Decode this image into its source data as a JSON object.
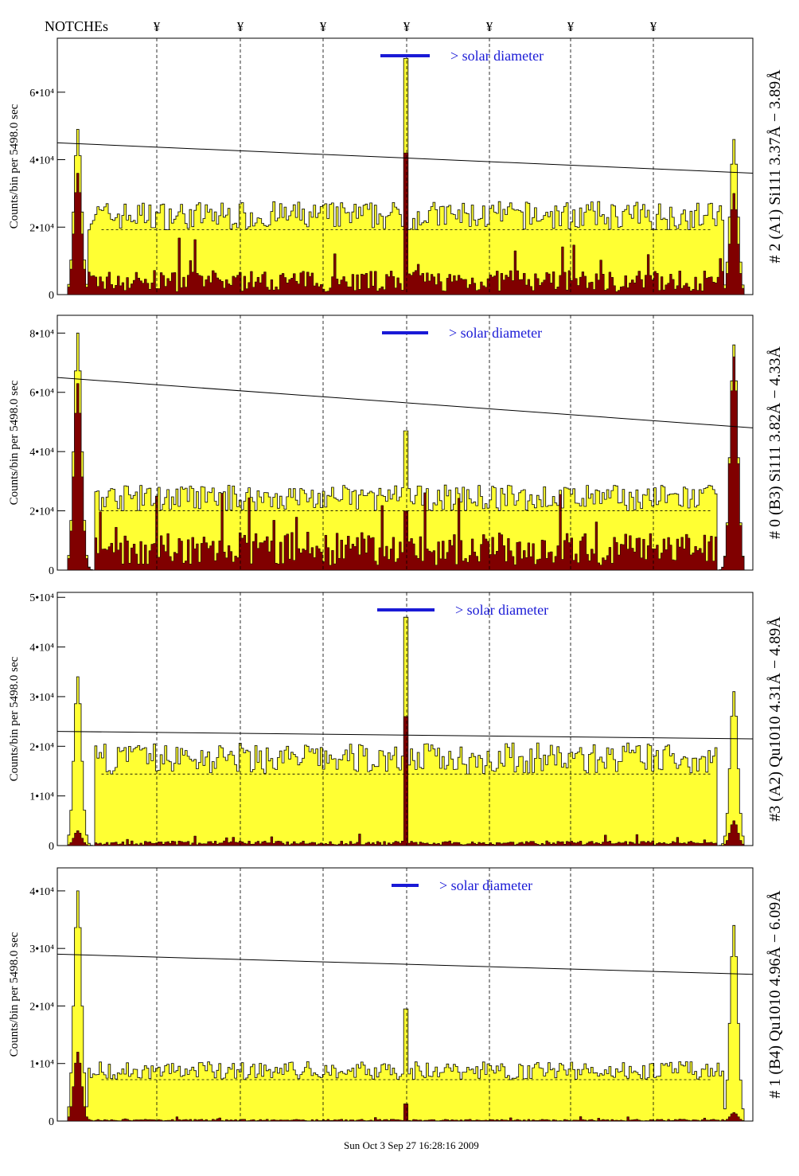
{
  "header": {
    "notches_label": "NOTCHEs",
    "notch_marker": "¥",
    "notch_count": 7
  },
  "footer": {
    "timestamp": "Sun Oct 3 Sep 27 16:28:16 2009"
  },
  "colors": {
    "panel_fill": "#ffff33",
    "overlay_fill": "#800000",
    "solar_bar": "#1a1ad6",
    "frame": "#000000"
  },
  "panels": [
    {
      "right_label": "# 2 (A1) Si111  3.37Å − 3.89Å",
      "ylabel": "Counts/bin per  5498.0 sec",
      "solar_text": "> solar diameter",
      "yticks": [
        "0",
        "2•10⁴",
        "4•10⁴",
        "6•10⁴"
      ]
    },
    {
      "right_label": "# 0 (B3) Si111  3.82Å − 4.33Å",
      "ylabel": "Counts/bin per  5498.0 sec",
      "solar_text": "> solar diameter",
      "yticks": [
        "0",
        "2•10⁴",
        "4•10⁴",
        "6•10⁴",
        "8•10⁴"
      ]
    },
    {
      "right_label": "#3 (A2) Qu1010  4.31Å − 4.89Å",
      "ylabel": "Counts/bin per  5498.0 sec",
      "solar_text": "> solar diameter",
      "yticks": [
        "0",
        "1•10⁴",
        "2•10⁴",
        "3•10⁴",
        "4•10⁴",
        "5•10⁴"
      ]
    },
    {
      "right_label": "# 1 (B4) Qu1010 4.96Å − 6.09Å",
      "ylabel": "Counts/bin per  5498.0 sec",
      "solar_text": "> solar diameter",
      "yticks": [
        "0",
        "1•10⁴",
        "2•10⁴",
        "3•10⁴",
        "4•10⁴"
      ]
    }
  ],
  "chart_data": [
    {
      "type": "area",
      "title": "",
      "ylabel": "Counts/bin per  5498.0 sec",
      "ylim": [
        0,
        76000
      ],
      "yticks": [
        0,
        20000,
        40000,
        60000
      ],
      "xlim": [
        0,
        1
      ],
      "notch_x": [
        0.14,
        0.26,
        0.38,
        0.5,
        0.62,
        0.74,
        0.86
      ],
      "trend_line": [
        [
          0.0,
          45000
        ],
        [
          1.0,
          36000
        ]
      ],
      "series": [
        {
          "name": "",
          "level": 24000,
          "edge_left": 0.03,
          "edge_right": 0.97,
          "central_spike": 70000,
          "left_peak": 49000,
          "right_peak": 46000
        },
        {
          "name": "",
          "level": 4500,
          "central_spike": 42000,
          "left_peak": 36000,
          "right_peak": 30000
        }
      ]
    },
    {
      "type": "area",
      "title": "",
      "ylabel": "Counts/bin per  5498.0 sec",
      "ylim": [
        0,
        86000
      ],
      "yticks": [
        0,
        20000,
        40000,
        60000,
        80000
      ],
      "xlim": [
        0,
        1
      ],
      "notch_x": [
        0.14,
        0.26,
        0.38,
        0.5,
        0.62,
        0.74,
        0.86
      ],
      "trend_line": [
        [
          0.0,
          65000
        ],
        [
          1.0,
          48000
        ]
      ],
      "series": [
        {
          "name": "",
          "level": 25000,
          "edge_left": 0.04,
          "edge_right": 0.96,
          "central_spike": 47000,
          "left_peak": 80000,
          "right_peak": 76000
        },
        {
          "name": "",
          "level": 8000,
          "central_spike": 20000,
          "left_peak": 63000,
          "right_peak": 72000
        }
      ]
    },
    {
      "type": "area",
      "title": "",
      "ylabel": "Counts/bin per  5498.0 sec",
      "ylim": [
        0,
        51000
      ],
      "yticks": [
        0,
        10000,
        20000,
        30000,
        40000,
        50000
      ],
      "xlim": [
        0,
        1
      ],
      "notch_x": [
        0.14,
        0.26,
        0.38,
        0.5,
        0.62,
        0.74,
        0.86
      ],
      "trend_line": [
        [
          0.0,
          23000
        ],
        [
          1.0,
          21500
        ]
      ],
      "series": [
        {
          "name": "",
          "level": 18000,
          "edge_left": 0.04,
          "edge_right": 0.96,
          "central_spike": 46000,
          "left_peak": 34000,
          "right_peak": 31000
        },
        {
          "name": "",
          "level": 600,
          "central_spike": 26000,
          "left_peak": 3000,
          "right_peak": 5000
        }
      ]
    },
    {
      "type": "area",
      "title": "",
      "ylabel": "Counts/bin per  5498.0 sec",
      "ylim": [
        0,
        44000
      ],
      "yticks": [
        0,
        10000,
        20000,
        30000,
        40000
      ],
      "xlim": [
        0,
        1
      ],
      "notch_x": [
        0.14,
        0.26,
        0.38,
        0.5,
        0.62,
        0.74,
        0.86
      ],
      "trend_line": [
        [
          0.0,
          29000
        ],
        [
          1.0,
          25500
        ]
      ],
      "series": [
        {
          "name": "",
          "level": 9000,
          "edge_left": 0.03,
          "edge_right": 0.97,
          "central_spike": 19500,
          "left_peak": 40000,
          "right_peak": 34000
        },
        {
          "name": "",
          "level": 200,
          "central_spike": 3000,
          "left_peak": 12000,
          "right_peak": 1500
        }
      ]
    }
  ]
}
